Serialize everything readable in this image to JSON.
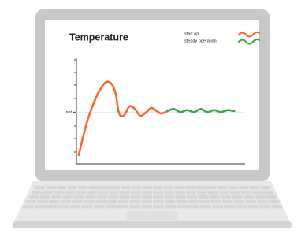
{
  "chart_data": {
    "type": "line",
    "title": "Temperature",
    "xlim": [
      0,
      100
    ],
    "ylim": [
      0,
      100
    ],
    "yticks": [
      {
        "value": 49,
        "label": "set"
      }
    ],
    "legend": "top-right",
    "series": [
      {
        "name": "start up",
        "color": "#f26a2e",
        "x": [
          1.4,
          3.8,
          7.0,
          10.8,
          14.6,
          17.8,
          21.1,
          23.5,
          24.9,
          26.3,
          28.6,
          31.5,
          34.7,
          38.0,
          41.3,
          44.6,
          47.9,
          50.7,
          54.0
        ],
        "values": [
          7.6,
          24.2,
          43.2,
          59.8,
          72.0,
          78.0,
          75.8,
          65.9,
          50.8,
          45.5,
          46.2,
          54.5,
          52.3,
          45.5,
          48.5,
          53.0,
          50.0,
          47.7,
          50.0
        ]
      },
      {
        "name": "steady operation",
        "color": "#3aa64a",
        "x": [
          54,
          58,
          62,
          66,
          70,
          74,
          78,
          82,
          86,
          90,
          94
        ],
        "values": [
          50,
          52,
          49,
          51,
          49,
          52,
          49,
          51,
          49,
          51,
          50
        ]
      }
    ]
  }
}
